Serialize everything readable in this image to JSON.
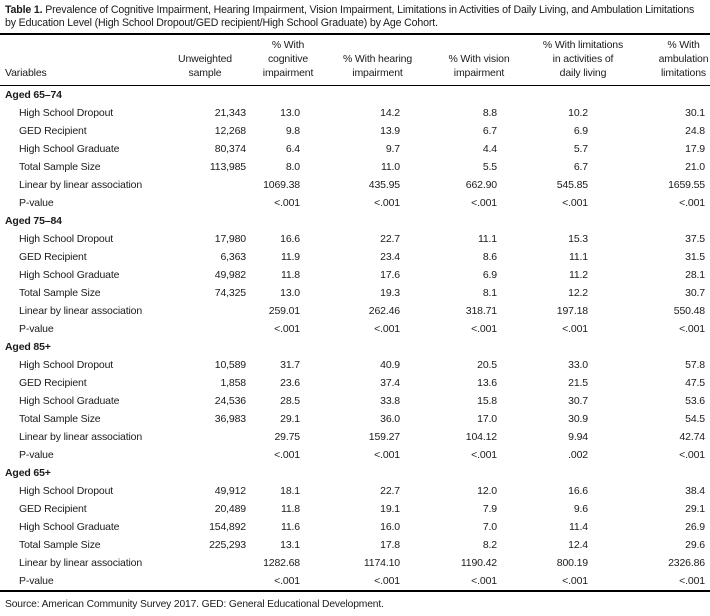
{
  "table": {
    "label": "Table 1.",
    "caption": "Prevalence of Cognitive Impairment, Hearing Impairment, Vision Impairment, Limitations in Activities of Daily Living, and Ambulation Limitations by Education Level (High School Dropout/GED recipient/High School Graduate) by Age Cohort.",
    "source_note": "Source: American Community Survey 2017. GED: General Educational Development.",
    "columns": [
      {
        "label": "Variables",
        "lines": [
          "Variables"
        ]
      },
      {
        "label": "Unweighted sample",
        "lines": [
          "Unweighted",
          "sample"
        ]
      },
      {
        "label": "% With cognitive impairment",
        "lines": [
          "% With",
          "cognitive",
          "impairment"
        ]
      },
      {
        "label": "% With hearing impairment",
        "lines": [
          "% With hearing",
          "impairment"
        ]
      },
      {
        "label": "% With vision impairment",
        "lines": [
          "% With vision",
          "impairment"
        ]
      },
      {
        "label": "% With limitations in activities of daily living",
        "lines": [
          "% With limitations",
          "in activities of",
          "daily living"
        ]
      },
      {
        "label": "% With ambulation limitations",
        "lines": [
          "% With",
          "ambulation",
          "limitations"
        ]
      }
    ],
    "sections": [
      {
        "header": "Aged 65–74",
        "rows": [
          {
            "label": "High School Dropout",
            "values": [
              "21,343",
              "13.0",
              "14.2",
              "8.8",
              "10.2",
              "30.1"
            ]
          },
          {
            "label": "GED Recipient",
            "values": [
              "12,268",
              "9.8",
              "13.9",
              "6.7",
              "6.9",
              "24.8"
            ]
          },
          {
            "label": "High School Graduate",
            "values": [
              "80,374",
              "6.4",
              "9.7",
              "4.4",
              "5.7",
              "17.9"
            ]
          },
          {
            "label": "Total Sample Size",
            "values": [
              "113,985",
              "8.0",
              "11.0",
              "5.5",
              "6.7",
              "21.0"
            ]
          },
          {
            "label": "Linear by linear association",
            "values": [
              "",
              "1069.38",
              "435.95",
              "662.90",
              "545.85",
              "1659.55"
            ]
          },
          {
            "label": "P-value",
            "values": [
              "",
              "<.001",
              "<.001",
              "<.001",
              "<.001",
              "<.001"
            ]
          }
        ]
      },
      {
        "header": "Aged 75–84",
        "rows": [
          {
            "label": "High School Dropout",
            "values": [
              "17,980",
              "16.6",
              "22.7",
              "11.1",
              "15.3",
              "37.5"
            ]
          },
          {
            "label": "GED Recipient",
            "values": [
              "6,363",
              "11.9",
              "23.4",
              "8.6",
              "11.1",
              "31.5"
            ]
          },
          {
            "label": "High School Graduate",
            "values": [
              "49,982",
              "11.8",
              "17.6",
              "6.9",
              "11.2",
              "28.1"
            ]
          },
          {
            "label": "Total Sample Size",
            "values": [
              "74,325",
              "13.0",
              "19.3",
              "8.1",
              "12.2",
              "30.7"
            ]
          },
          {
            "label": "Linear by linear association",
            "values": [
              "",
              "259.01",
              "262.46",
              "318.71",
              "197.18",
              "550.48"
            ]
          },
          {
            "label": "P-value",
            "values": [
              "",
              "<.001",
              "<.001",
              "<.001",
              "<.001",
              "<.001"
            ]
          }
        ]
      },
      {
        "header": "Aged 85+",
        "rows": [
          {
            "label": "High School Dropout",
            "values": [
              "10,589",
              "31.7",
              "40.9",
              "20.5",
              "33.0",
              "57.8"
            ]
          },
          {
            "label": "GED Recipient",
            "values": [
              "1,858",
              "23.6",
              "37.4",
              "13.6",
              "21.5",
              "47.5"
            ]
          },
          {
            "label": "High School Graduate",
            "values": [
              "24,536",
              "28.5",
              "33.8",
              "15.8",
              "30.7",
              "53.6"
            ]
          },
          {
            "label": "Total Sample Size",
            "values": [
              "36,983",
              "29.1",
              "36.0",
              "17.0",
              "30.9",
              "54.5"
            ]
          },
          {
            "label": "Linear by linear association",
            "values": [
              "",
              "29.75",
              "159.27",
              "104.12",
              "9.94",
              "42.74"
            ]
          },
          {
            "label": "P-value",
            "values": [
              "",
              "<.001",
              "<.001",
              "<.001",
              ".002",
              "<.001"
            ]
          }
        ]
      },
      {
        "header": "Aged 65+",
        "rows": [
          {
            "label": "High School Dropout",
            "values": [
              "49,912",
              "18.1",
              "22.7",
              "12.0",
              "16.6",
              "38.4"
            ]
          },
          {
            "label": "GED Recipient",
            "values": [
              "20,489",
              "11.8",
              "19.1",
              "7.9",
              "9.6",
              "29.1"
            ]
          },
          {
            "label": "High School Graduate",
            "values": [
              "154,892",
              "11.6",
              "16.0",
              "7.0",
              "11.4",
              "26.9"
            ]
          },
          {
            "label": "Total Sample Size",
            "values": [
              "225,293",
              "13.1",
              "17.8",
              "8.2",
              "12.4",
              "29.6"
            ]
          },
          {
            "label": "Linear by linear association",
            "values": [
              "",
              "1282.68",
              "1174.10",
              "1190.42",
              "800.19",
              "2326.86"
            ]
          },
          {
            "label": "P-value",
            "values": [
              "",
              "<.001",
              "<.001",
              "<.001",
              "<.001",
              "<.001"
            ]
          }
        ]
      }
    ]
  }
}
